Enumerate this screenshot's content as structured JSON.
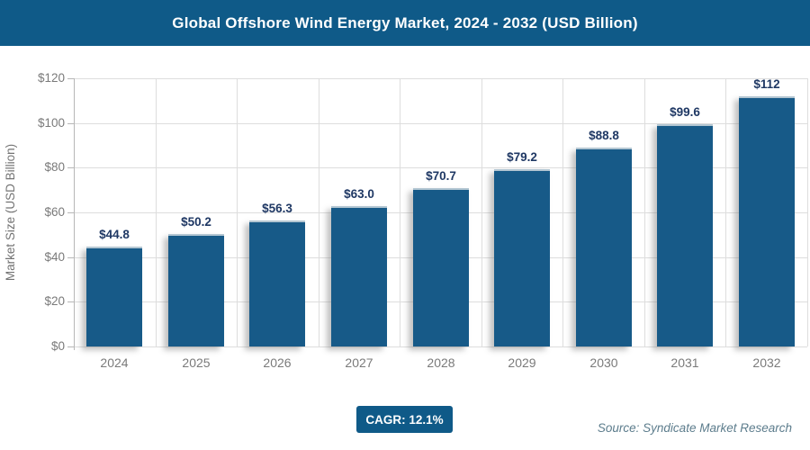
{
  "header": {
    "title": "Global Offshore Wind Energy Market, 2024 - 2032 (USD Billion)"
  },
  "chart_data": {
    "type": "bar",
    "title": "Global Offshore Wind Energy Market, 2024 - 2032 (USD Billion)",
    "categories": [
      "2024",
      "2025",
      "2026",
      "2027",
      "2028",
      "2029",
      "2030",
      "2031",
      "2032"
    ],
    "values": [
      44.8,
      50.2,
      56.3,
      63.0,
      70.7,
      79.2,
      88.8,
      99.6,
      112
    ],
    "value_labels": [
      "$44.8",
      "$50.2",
      "$56.3",
      "$63.0",
      "$70.7",
      "$79.2",
      "$88.8",
      "$99.6",
      "$112"
    ],
    "xlabel": "",
    "ylabel": "Market Size (USD Billion)",
    "ylim": [
      0,
      120
    ],
    "yticks": {
      "values": [
        0,
        20,
        40,
        60,
        80,
        100,
        120
      ],
      "labels": [
        "$0",
        "$20",
        "$40",
        "$60",
        "$80",
        "$100",
        "$120"
      ]
    },
    "grid": "horizontal and vertical gridlines, light gray",
    "legend": "none"
  },
  "footer": {
    "cagr": "CAGR: 12.1%",
    "source": "Source: Syndicate Market Research"
  },
  "colors": {
    "header_bg": "#0f5a88",
    "bar": "#175a88",
    "bar_top_edge": "#b3c6d2",
    "value_label": "#1f3864",
    "axis_text": "#7a7a7a",
    "axis_line": "#b7b7b7",
    "gridline": "#dddddd",
    "badge_bg": "#0f5a88",
    "source_text": "#5c7c8c"
  }
}
